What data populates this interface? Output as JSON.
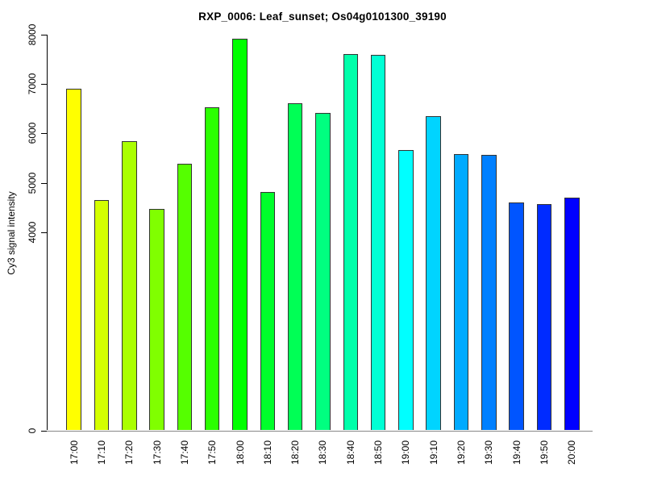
{
  "chart_data": {
    "type": "bar",
    "title": "RXP_0006: Leaf_sunset; Os04g0101300_39190",
    "ylabel": "Cy3 signal intensity",
    "xlabel": "",
    "ylim": [
      0,
      8000
    ],
    "yticks": [
      0,
      4000,
      5000,
      6000,
      7000,
      8000
    ],
    "grid": false,
    "legend": null,
    "categories": [
      "17:00",
      "17:10",
      "17:20",
      "17:30",
      "17:40",
      "17:50",
      "18:00",
      "18:10",
      "18:20",
      "18:30",
      "18:40",
      "18:50",
      "19:00",
      "19:10",
      "19:20",
      "19:30",
      "19:40",
      "19:50",
      "20:00"
    ],
    "values": [
      6900,
      4660,
      5850,
      4480,
      5390,
      6530,
      7920,
      4820,
      6610,
      6420,
      7610,
      7590,
      5670,
      6350,
      5590,
      5570,
      4610,
      4580,
      4710
    ],
    "bar_colors": [
      "#FFFF00",
      "#D4FF00",
      "#AAFF00",
      "#80FF00",
      "#55FF00",
      "#2BFF00",
      "#00FF00",
      "#00FF2B",
      "#00FF55",
      "#00FF80",
      "#00FFAA",
      "#00FFD4",
      "#00FFFF",
      "#00D4FF",
      "#00AAFF",
      "#0080FF",
      "#0055FF",
      "#002BFF",
      "#0000FF"
    ],
    "colors": {
      "bar_border": "#333333",
      "axis": "#000000",
      "tick": "#000000",
      "baseline": "#888888",
      "text": "#000000",
      "background": "#FFFFFF"
    }
  }
}
